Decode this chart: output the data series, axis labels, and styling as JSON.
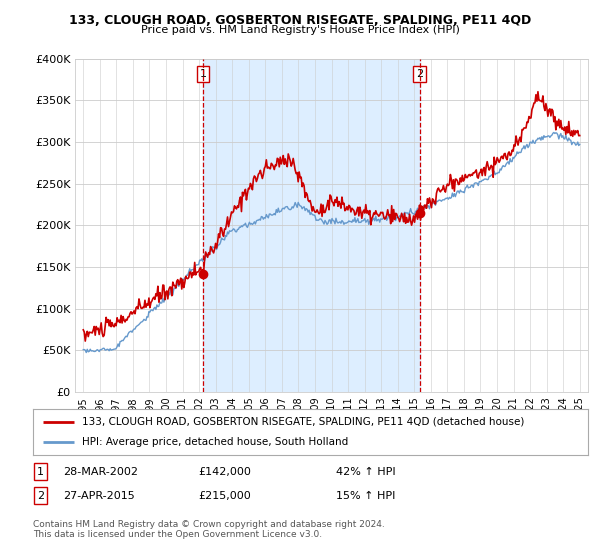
{
  "title": "133, CLOUGH ROAD, GOSBERTON RISEGATE, SPALDING, PE11 4QD",
  "subtitle": "Price paid vs. HM Land Registry's House Price Index (HPI)",
  "legend_line1": "133, CLOUGH ROAD, GOSBERTON RISEGATE, SPALDING, PE11 4QD (detached house)",
  "legend_line2": "HPI: Average price, detached house, South Holland",
  "footnote": "Contains HM Land Registry data © Crown copyright and database right 2024.\nThis data is licensed under the Open Government Licence v3.0.",
  "sale1_date": "28-MAR-2002",
  "sale1_price": "£142,000",
  "sale1_hpi": "42% ↑ HPI",
  "sale2_date": "27-APR-2015",
  "sale2_price": "£215,000",
  "sale2_hpi": "15% ↑ HPI",
  "vline1_x": 2002.23,
  "vline2_x": 2015.32,
  "marker1_x": 2002.23,
  "marker1_y": 142000,
  "marker2_x": 2015.32,
  "marker2_y": 215000,
  "red_color": "#cc0000",
  "blue_color": "#6699cc",
  "vline_color": "#cc0000",
  "shade_color": "#ddeeff",
  "ylim": [
    0,
    400000
  ],
  "yticks": [
    0,
    50000,
    100000,
    150000,
    200000,
    250000,
    300000,
    350000,
    400000
  ],
  "ytick_labels": [
    "£0",
    "£50K",
    "£100K",
    "£150K",
    "£200K",
    "£250K",
    "£300K",
    "£350K",
    "£400K"
  ],
  "xlim_start": 1994.5,
  "xlim_end": 2025.5
}
